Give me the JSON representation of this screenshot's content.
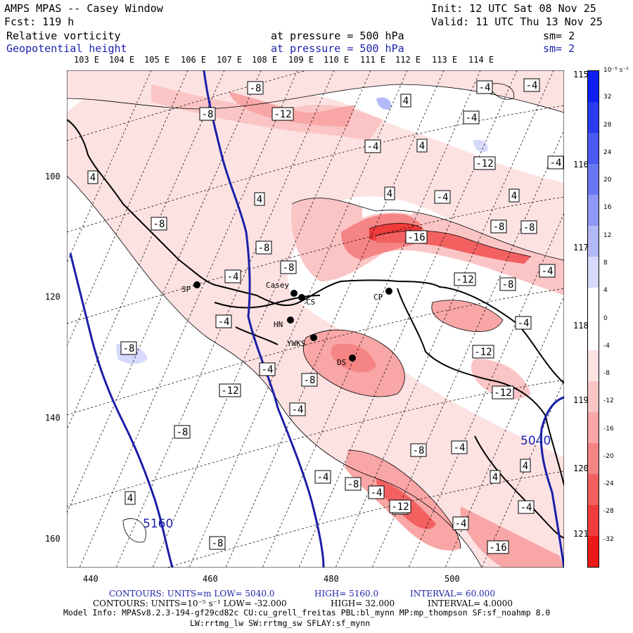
{
  "header": {
    "model": "AMPS MPAS -- Casey Window",
    "forecast": "Fcst:  119 h",
    "init": "Init: 12 UTC Sat 08 Nov 25",
    "valid": "Valid: 11 UTC Thu 13 Nov 25",
    "field1_name": "Relative vorticity",
    "field1_pressure": "at pressure =  500 hPa",
    "field1_smooth": "sm= 2",
    "field2_name": "Geopotential height",
    "field2_pressure": "at pressure =  500 hPa",
    "field2_smooth": "sm= 2"
  },
  "top_longitudes": [
    "103 E",
    "104 E",
    "105 E",
    "106 E",
    "107 E",
    "108 E",
    "109 E",
    "110 E",
    "111 E",
    "112 E",
    "113 E",
    "114 E"
  ],
  "right_longitudes": [
    "115 E",
    "116 E",
    "117 E",
    "118 E",
    "119 E",
    "120 E",
    "121 E"
  ],
  "x_ticks": [
    "440",
    "460",
    "480",
    "500"
  ],
  "y_ticks": [
    "100",
    "120",
    "140",
    "160"
  ],
  "stations": [
    {
      "label": "Casey",
      "name": "casey"
    },
    {
      "label": "CS",
      "name": "cs"
    },
    {
      "label": "HN",
      "name": "hn"
    },
    {
      "label": "YWKS",
      "name": "ywks"
    },
    {
      "label": "DS",
      "name": "ds"
    },
    {
      "label": "CP",
      "name": "cp"
    },
    {
      "label": "SP",
      "name": "sp"
    }
  ],
  "contour_labels": [
    "-8",
    "-12",
    "-8",
    "4",
    "-4",
    "-4",
    "-4",
    "4",
    "-12",
    "-4",
    "4",
    "4",
    "-4",
    "4",
    "4",
    "-4",
    "-8",
    "-8",
    "-8",
    "-16",
    "-8",
    "-8",
    "-4",
    "-12",
    "-4",
    "-8",
    "-4",
    "-4",
    "-12",
    "-8",
    "-8",
    "-4",
    "-4",
    "-12",
    "-12",
    "-8",
    "-8",
    "-4",
    "-4",
    "-16",
    "-12",
    "-8",
    "-8",
    "-4",
    "-8",
    "4",
    "4",
    "4",
    "-4",
    "-4"
  ],
  "height_labels": [
    "5040",
    "5160"
  ],
  "colorbar": {
    "unit": "10⁻⁵ s⁻¹",
    "ticks": [
      "32",
      "28",
      "24",
      "20",
      "16",
      "12",
      "8",
      "4",
      "0",
      "-4",
      "-8",
      "-12",
      "-16",
      "-20",
      "-24",
      "-28",
      "-32"
    ],
    "colors": [
      "#0f1ff0",
      "#2a3cf0",
      "#4a5af2",
      "#6a77f4",
      "#8f98f6",
      "#b3b9f8",
      "#d6d9fb",
      "#ffffff",
      "#ffffff",
      "#fde2e2",
      "#fbc5c5",
      "#f8a6a6",
      "#f58484",
      "#f26060",
      "#ef3b3b",
      "#ed1a1a"
    ]
  },
  "footer": {
    "line1_a": "CONTOURS:  UNITS=m  LOW=  5040.0",
    "line1_b": "HIGH=  5160.0",
    "line1_c": "INTERVAL=   60.000",
    "line2_a": "CONTOURS:  UNITS=10⁻⁵ s⁻¹  LOW= -32.000",
    "line2_b": "HIGH=  32.000",
    "line2_c": "INTERVAL=   4.0000",
    "line3": "Model Info: MPASv8.2.3-194-gf29cd82c CU:cu_grell_freitas PBL:bl_mynn MP:mp_thompson SF:sf_noahmp 8.0",
    "line4": "LW:rrtmg_lw SW:rrtmg_sw SFLAY:sf_mynn"
  },
  "colors": {
    "height_contour": "#1b1fa8",
    "text_blue": "#1b1fa8"
  }
}
